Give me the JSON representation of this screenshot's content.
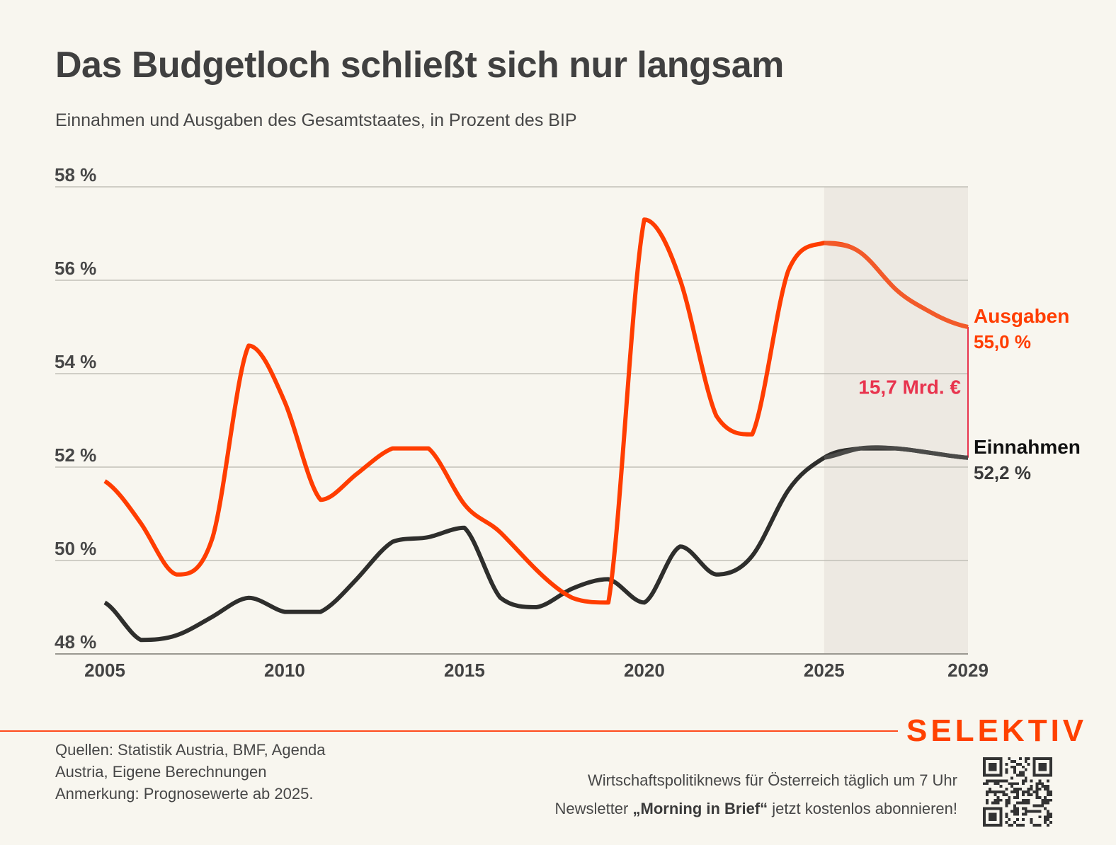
{
  "header": {
    "title": "Das Budgetloch schließt sich nur langsam",
    "subtitle": "Einnahmen und Ausgaben des Gesamtstaates, in Prozent des BIP"
  },
  "colors": {
    "background": "#f8f6ef",
    "forecast_band": "#ede9e2",
    "ausgaben": "#ff3d00",
    "einnahmen": "#2e2e2c",
    "gap": "#e8344e",
    "grid": "#b9b7ae",
    "brand": "#ff4100"
  },
  "chart_data": {
    "type": "line",
    "title": "Das Budgetloch schließt sich nur langsam",
    "subtitle": "Einnahmen und Ausgaben des Gesamtstaates, in Prozent des BIP",
    "xlabel": "",
    "ylabel": "",
    "x": [
      2005,
      2006,
      2007,
      2008,
      2009,
      2010,
      2011,
      2012,
      2013,
      2014,
      2015,
      2016,
      2017,
      2018,
      2019,
      2020,
      2021,
      2022,
      2023,
      2024,
      2025,
      2026,
      2027,
      2028,
      2029
    ],
    "xlim": [
      2005,
      2029
    ],
    "ylim": [
      48,
      58
    ],
    "x_ticks": [
      2005,
      2010,
      2015,
      2020,
      2025,
      2029
    ],
    "x_tick_labels": [
      "2005",
      "2010",
      "2015",
      "2020",
      "2025",
      "2029"
    ],
    "y_ticks": [
      48,
      50,
      52,
      54,
      56,
      58
    ],
    "y_tick_labels": [
      "48 %",
      "50 %",
      "52 %",
      "54 %",
      "56 %",
      "58 %"
    ],
    "grid": true,
    "series": [
      {
        "name": "Ausgaben",
        "end_label": "55,0 %",
        "values": [
          51.7,
          50.8,
          49.7,
          50.5,
          54.6,
          53.4,
          51.3,
          51.85,
          52.4,
          52.4,
          51.2,
          50.6,
          49.8,
          49.2,
          49.1,
          57.3,
          56.0,
          53.1,
          52.7,
          56.2,
          56.8,
          56.6,
          55.8,
          55.3,
          55.0
        ]
      },
      {
        "name": "Einnahmen",
        "end_label": "52,2 %",
        "values": [
          49.1,
          48.3,
          48.4,
          48.8,
          49.2,
          48.9,
          48.9,
          49.6,
          50.4,
          50.5,
          50.7,
          49.2,
          49.0,
          49.4,
          49.6,
          49.1,
          50.3,
          49.7,
          50.1,
          51.5,
          52.2,
          52.4,
          52.4,
          52.3,
          52.2
        ]
      }
    ],
    "forecast_from": 2025,
    "annotations": [
      {
        "text": "15,7 Mrd. €",
        "type": "gap",
        "x": 2029,
        "from": 52.2,
        "to": 55.0
      }
    ],
    "legend": "direct-labels-right"
  },
  "footer": {
    "sources_lines": [
      "Quellen: Statistik Austria, BMF, Agenda",
      "Austria, Eigene Berechnungen",
      "Anmerkung: Prognosewerte ab 2025."
    ],
    "brand": "SELEKTIV",
    "promo_line1": "Wirtschaftspolitiknews für Österreich täglich um 7 Uhr",
    "promo_line2_pre": "Newsletter ",
    "promo_line2_bold": "„Morning in Brief“",
    "promo_line2_post": " jetzt kostenlos abonnieren!",
    "qr_icon": "qr-code-icon"
  }
}
